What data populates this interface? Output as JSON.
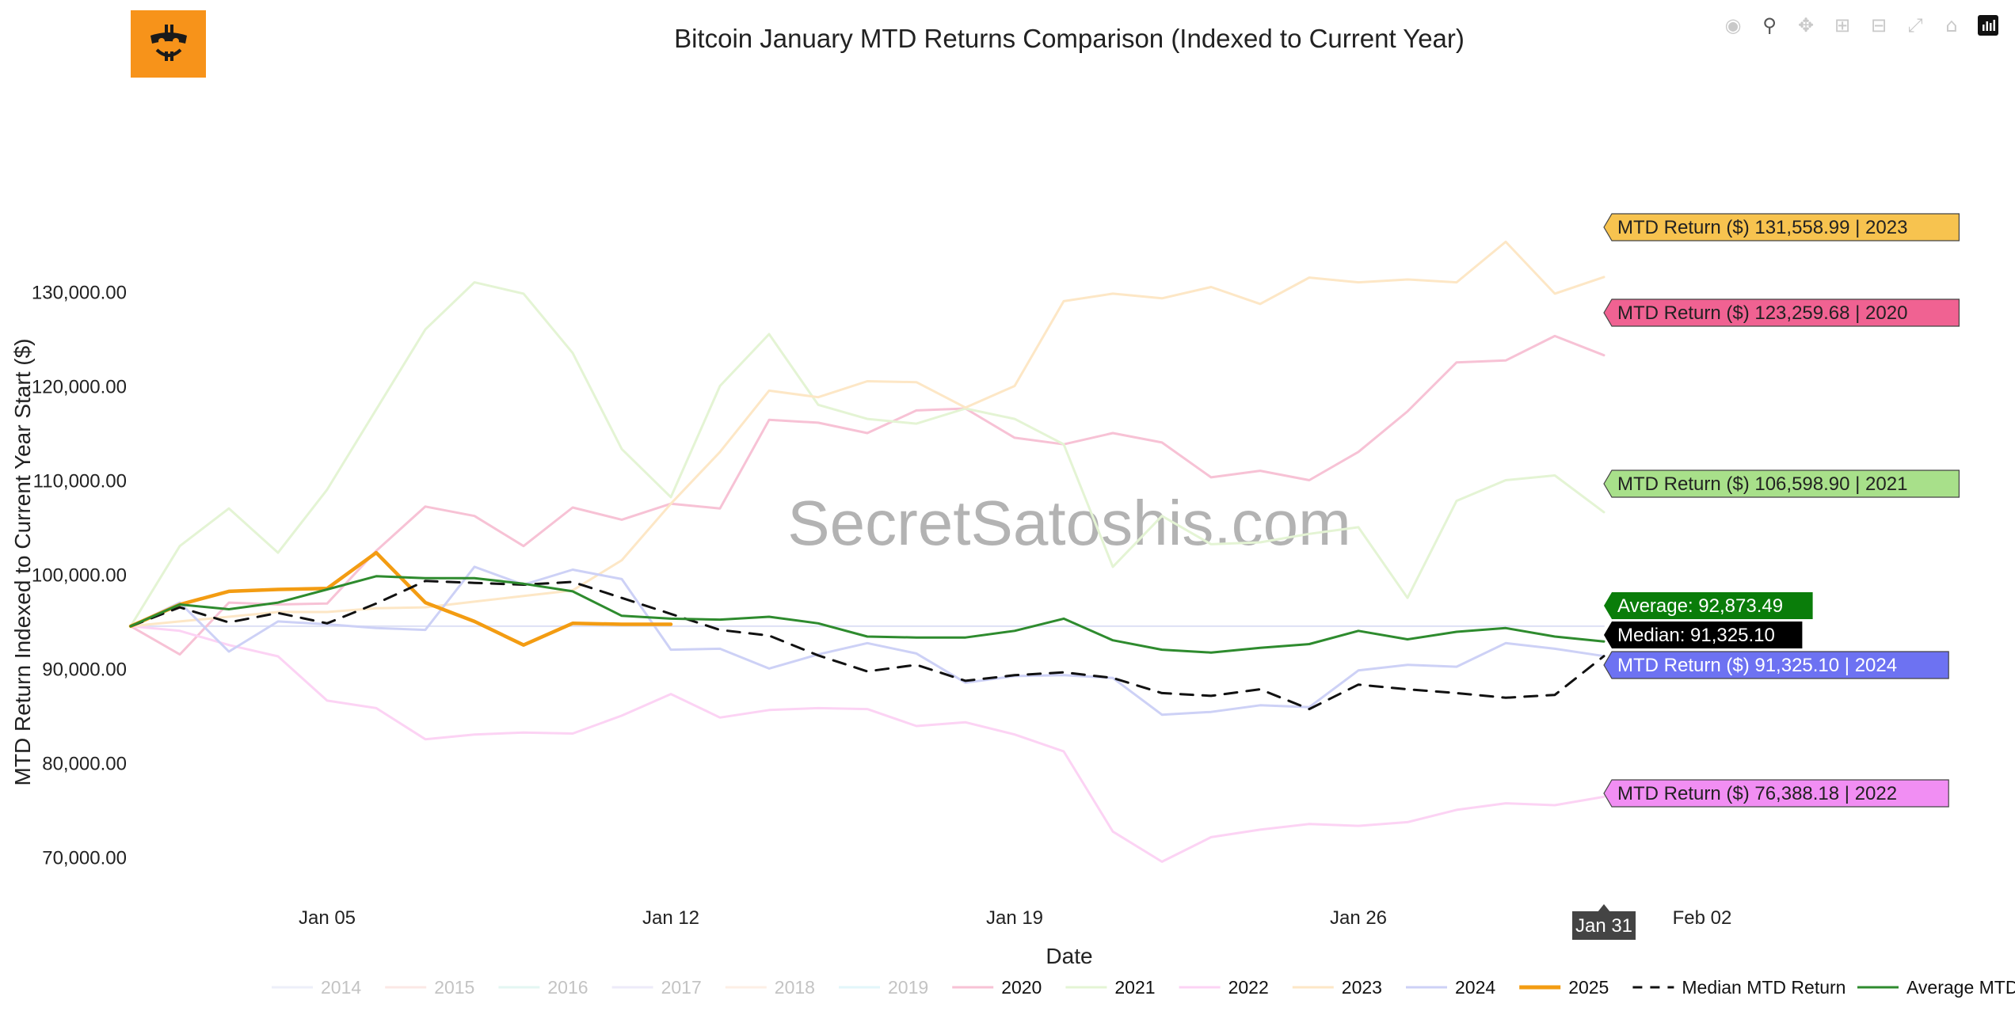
{
  "chart_data": {
    "type": "line",
    "title": "Bitcoin January MTD Returns Comparison (Indexed to Current Year)",
    "xlabel": "Date",
    "ylabel": "MTD Return Indexed to Current Year Start ($)",
    "x_ticks": [
      "Jan 05",
      "Jan 12",
      "Jan 19",
      "Jan 26",
      "Feb 02"
    ],
    "x_range_day": [
      1,
      36
    ],
    "ylim": [
      66000,
      145000
    ],
    "y_ticks": [
      70000,
      80000,
      90000,
      100000,
      110000,
      120000,
      130000
    ],
    "y_tick_labels": [
      "70,000.00",
      "80,000.00",
      "90,000.00",
      "100,000.00",
      "110,000.00",
      "120,000.00",
      "130,000.00"
    ],
    "hover_x_label": "Jan 31",
    "watermark": "SecretSatoshis.com",
    "legend_position": "bottom",
    "grid": false,
    "series": [
      {
        "name": "2014",
        "color": "#dde0f5",
        "width": 2,
        "dash": false,
        "legend_faded": true,
        "days": [
          1,
          2,
          3,
          4,
          5,
          6,
          7,
          8,
          9,
          10,
          11,
          12,
          13,
          14,
          15,
          16,
          17,
          18,
          19,
          20,
          21,
          22,
          23,
          24,
          25,
          26,
          27,
          28,
          29,
          30,
          31
        ],
        "values": [
          94500,
          94500,
          94500,
          94500,
          94500,
          94500,
          94500,
          94500,
          94500,
          94500,
          94500,
          94500,
          94500,
          94500,
          94500,
          94500,
          94500,
          94500,
          94500,
          94500,
          94500,
          94500,
          94500,
          94500,
          94500,
          94500,
          94500,
          94500,
          94500,
          94500,
          94500
        ]
      },
      {
        "name": "2020",
        "color": "#f7c2d5",
        "width": 3,
        "dash": false,
        "days": [
          1,
          2,
          3,
          4,
          5,
          6,
          7,
          8,
          9,
          10,
          11,
          12,
          13,
          14,
          15,
          16,
          17,
          18,
          19,
          20,
          21,
          22,
          23,
          24,
          25,
          26,
          27,
          28,
          29,
          30,
          31
        ],
        "values": [
          94500,
          91500,
          97000,
          96800,
          96900,
          102500,
          107200,
          106200,
          103000,
          107100,
          105800,
          107500,
          107000,
          116400,
          116100,
          115000,
          117400,
          117600,
          114500,
          113800,
          115000,
          114000,
          110300,
          111000,
          110000,
          113000,
          117300,
          122500,
          122700,
          125300,
          123259.68
        ],
        "end_label": "MTD Return ($) 123,259.68 | 2020",
        "label_color": "#f06292"
      },
      {
        "name": "2021",
        "color": "#e4f4d4",
        "width": 3,
        "dash": false,
        "days": [
          1,
          2,
          3,
          4,
          5,
          6,
          7,
          8,
          9,
          10,
          11,
          12,
          13,
          14,
          15,
          16,
          17,
          18,
          19,
          20,
          21,
          22,
          23,
          24,
          25,
          26,
          27,
          28,
          29,
          30,
          31
        ],
        "values": [
          94500,
          103000,
          107000,
          102300,
          109000,
          117500,
          126000,
          131000,
          129800,
          123500,
          113300,
          108200,
          120000,
          125500,
          118000,
          116500,
          116000,
          117600,
          116500,
          113800,
          100800,
          106200,
          103200,
          103400,
          104300,
          105000,
          97500,
          107800,
          110000,
          110500,
          106598.9
        ],
        "end_label": "MTD Return ($) 106,598.90 | 2021",
        "label_color": "#a8e08a"
      },
      {
        "name": "2022",
        "color": "#fcd3f4",
        "width": 3,
        "dash": false,
        "days": [
          1,
          2,
          3,
          4,
          5,
          6,
          7,
          8,
          9,
          10,
          11,
          12,
          13,
          14,
          15,
          16,
          17,
          18,
          19,
          20,
          21,
          22,
          23,
          24,
          25,
          26,
          27,
          28,
          29,
          30,
          31
        ],
        "values": [
          94500,
          94000,
          92500,
          91300,
          86600,
          85800,
          82500,
          83000,
          83200,
          83100,
          85000,
          87300,
          84800,
          85600,
          85800,
          85700,
          83900,
          84300,
          83000,
          81200,
          72700,
          69500,
          72100,
          72900,
          73500,
          73300,
          73700,
          75000,
          75700,
          75500,
          76388.18
        ],
        "end_label": "MTD Return ($) 76,388.18 | 2022",
        "label_color": "#f18ef3"
      },
      {
        "name": "2023",
        "color": "#fde7c6",
        "width": 3,
        "dash": false,
        "days": [
          1,
          2,
          3,
          4,
          5,
          6,
          7,
          8,
          9,
          10,
          11,
          12,
          13,
          14,
          15,
          16,
          17,
          18,
          19,
          20,
          21,
          22,
          23,
          24,
          25,
          26,
          27,
          28,
          29,
          30,
          31
        ],
        "values": [
          94500,
          95000,
          95500,
          96000,
          96000,
          96400,
          96500,
          97100,
          97700,
          98300,
          101500,
          107500,
          113000,
          119500,
          118800,
          120500,
          120400,
          117700,
          120000,
          129000,
          129800,
          129300,
          130500,
          128700,
          131500,
          131000,
          131300,
          131000,
          135300,
          129800,
          131558.99
        ],
        "end_label": "MTD Return ($) 131,558.99 | 2023",
        "label_color": "#f7c34f"
      },
      {
        "name": "2024",
        "color": "#cdd1f6",
        "width": 3,
        "dash": false,
        "days": [
          1,
          2,
          3,
          4,
          5,
          6,
          7,
          8,
          9,
          10,
          11,
          12,
          13,
          14,
          15,
          16,
          17,
          18,
          19,
          20,
          21,
          22,
          23,
          24,
          25,
          26,
          27,
          28,
          29,
          30,
          31
        ],
        "values": [
          94500,
          97000,
          91800,
          95000,
          94700,
          94300,
          94100,
          100800,
          98900,
          100500,
          99500,
          92000,
          92100,
          90000,
          91500,
          92700,
          91600,
          88500,
          89200,
          89300,
          89000,
          85100,
          85400,
          86100,
          85900,
          89800,
          90400,
          90200,
          92700,
          92100,
          91325.1
        ],
        "end_label": "MTD Return ($) 91,325.10 | 2024",
        "label_color": "#6d72f2"
      },
      {
        "name": "2025",
        "color": "#f39c12",
        "width": 4.5,
        "dash": false,
        "days": [
          1,
          2,
          3,
          4,
          5,
          6,
          7,
          8,
          9,
          10,
          11,
          12
        ],
        "values": [
          94500,
          96800,
          98200,
          98400,
          98500,
          102300,
          97000,
          95000,
          92500,
          94800,
          94700,
          94700
        ]
      },
      {
        "name": "Median MTD Return",
        "color": "#111111",
        "width": 3,
        "dash": true,
        "days": [
          1,
          2,
          3,
          4,
          5,
          6,
          7,
          8,
          9,
          10,
          11,
          12,
          13,
          14,
          15,
          16,
          17,
          18,
          19,
          20,
          21,
          22,
          23,
          24,
          25,
          26,
          27,
          28,
          29,
          30,
          31
        ],
        "values": [
          94500,
          96500,
          94900,
          95900,
          94800,
          96900,
          99300,
          99100,
          98900,
          99200,
          97500,
          95800,
          94100,
          93500,
          91400,
          89700,
          90400,
          88700,
          89300,
          89600,
          89000,
          87400,
          87100,
          87800,
          85700,
          88300,
          87800,
          87400,
          86900,
          87200,
          91325.1
        ],
        "end_label": "Median: 91,325.10",
        "label_color": "#000000"
      },
      {
        "name": "Average MTD Return",
        "color": "#2e8b2e",
        "width": 3,
        "dash": false,
        "days": [
          1,
          2,
          3,
          4,
          5,
          6,
          7,
          8,
          9,
          10,
          11,
          12,
          13,
          14,
          15,
          16,
          17,
          18,
          19,
          20,
          21,
          22,
          23,
          24,
          25,
          26,
          27,
          28,
          29,
          30,
          31
        ],
        "values": [
          94500,
          96800,
          96300,
          97000,
          98400,
          99800,
          99600,
          99600,
          99000,
          98200,
          95600,
          95300,
          95200,
          95500,
          94800,
          93400,
          93300,
          93300,
          94000,
          95300,
          93000,
          92000,
          91700,
          92200,
          92600,
          94000,
          93100,
          93900,
          94300,
          93400,
          92873.49
        ],
        "end_label": "Average: 92,873.49",
        "label_color": "#0a7d0a"
      }
    ],
    "legend": [
      {
        "name": "2014",
        "color": "#dde0f5",
        "faded": true,
        "dash": false
      },
      {
        "name": "2015",
        "color": "#f8d3cc",
        "faded": true,
        "dash": false
      },
      {
        "name": "2016",
        "color": "#c9efe6",
        "faded": true,
        "dash": false
      },
      {
        "name": "2017",
        "color": "#dcd9f5",
        "faded": true,
        "dash": false
      },
      {
        "name": "2018",
        "color": "#fde0cc",
        "faded": true,
        "dash": false
      },
      {
        "name": "2019",
        "color": "#c7eef6",
        "faded": true,
        "dash": false
      },
      {
        "name": "2020",
        "color": "#f7c2d5",
        "faded": false,
        "dash": false
      },
      {
        "name": "2021",
        "color": "#e4f4d4",
        "faded": false,
        "dash": false
      },
      {
        "name": "2022",
        "color": "#fcd3f4",
        "faded": false,
        "dash": false
      },
      {
        "name": "2023",
        "color": "#fde7c6",
        "faded": false,
        "dash": false
      },
      {
        "name": "2024",
        "color": "#cdd1f6",
        "faded": false,
        "dash": false
      },
      {
        "name": "2025",
        "color": "#f39c12",
        "faded": false,
        "dash": false
      },
      {
        "name": "Median MTD Return",
        "color": "#111111",
        "faded": false,
        "dash": true
      },
      {
        "name": "Average MTD Return",
        "color": "#2e8b2e",
        "faded": false,
        "dash": false
      }
    ]
  },
  "toolbar": {
    "icons": [
      "camera-icon",
      "zoom-icon",
      "pan-icon",
      "zoom-in-icon",
      "zoom-out-icon",
      "autoscale-icon",
      "home-icon",
      "plotly-logo-icon"
    ]
  },
  "logo": {
    "color": "#f7931a"
  }
}
